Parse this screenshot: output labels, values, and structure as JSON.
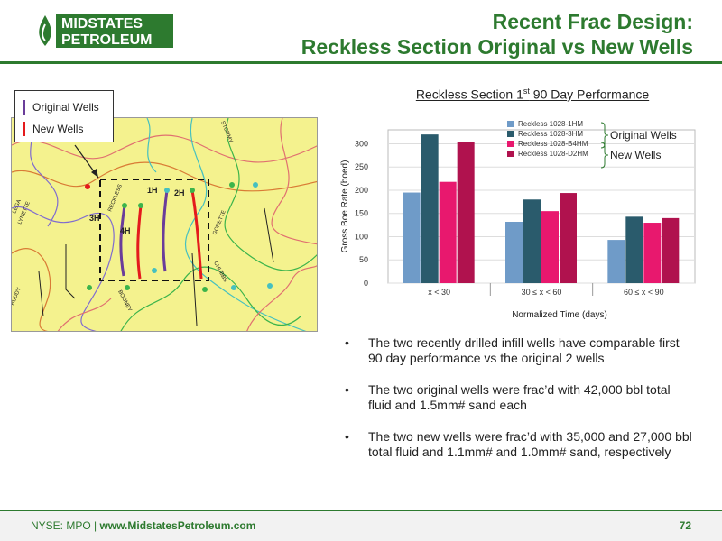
{
  "brand": {
    "logo_line1": "MIDSTATES",
    "logo_line2": "PETROLEUM",
    "green": "#2d7a2f",
    "logo_icon": "drop-icon"
  },
  "header": {
    "title_line1": "Recent Frac Design:",
    "title_line2": "Reckless Section Original vs New Wells"
  },
  "map": {
    "legend": [
      {
        "label": "Original Wells",
        "color": "#6a3d9a"
      },
      {
        "label": "New Wells",
        "color": "#e41a1c"
      }
    ],
    "well_labels": [
      "1H",
      "2H",
      "3H",
      "4H"
    ],
    "place_labels": [
      "RECKLESS",
      "STORMY",
      "LYNETTE",
      "LEGA",
      "GORETTE",
      "CHUBBS",
      "BOONEY",
      "BUDDY"
    ]
  },
  "chart_data": {
    "type": "bar",
    "title": "Reckless Section 1st 90 Day Performance",
    "title_main": "Reckless Section 1",
    "title_sup": "st",
    "title_tail": " 90 Day Performance",
    "xlabel": "Normalized Time (days)",
    "ylabel": "Gross Boe Rate (boed)",
    "ylim": [
      0,
      330
    ],
    "yticks": [
      0,
      50,
      100,
      150,
      200,
      250,
      300
    ],
    "categories": [
      "x < 30",
      "30 ≤ x < 60",
      "60 ≤ x < 90"
    ],
    "series": [
      {
        "name": "Reckless 1028-1HM",
        "color": "#6f9bc8",
        "values": [
          195,
          132,
          93
        ]
      },
      {
        "name": "Reckless 1028-3HM",
        "color": "#2a5b6c",
        "values": [
          320,
          180,
          143
        ]
      },
      {
        "name": "Reckless 1028-B4HM",
        "color": "#e8186e",
        "values": [
          218,
          155,
          130
        ]
      },
      {
        "name": "Reckless 1028-D2HM",
        "color": "#b0124e",
        "values": [
          303,
          194,
          140
        ]
      }
    ],
    "group_labels": [
      "Original Wells",
      "New Wells"
    ],
    "grid": true,
    "legend_position": "top"
  },
  "bullets": [
    "The two recently drilled infill wells have comparable first 90 day performance vs the original 2 wells",
    "The two original wells were frac’d with 42,000 bbl total fluid and 1.5mm# sand each",
    "The two new wells were frac’d with 35,000 and 27,000 bbl total fluid and 1.1mm# and 1.0mm# sand, respectively"
  ],
  "footer": {
    "ticker": "NYSE: MPO | ",
    "website": "www.MidstatesPetroleum.com",
    "page_number": "72"
  }
}
